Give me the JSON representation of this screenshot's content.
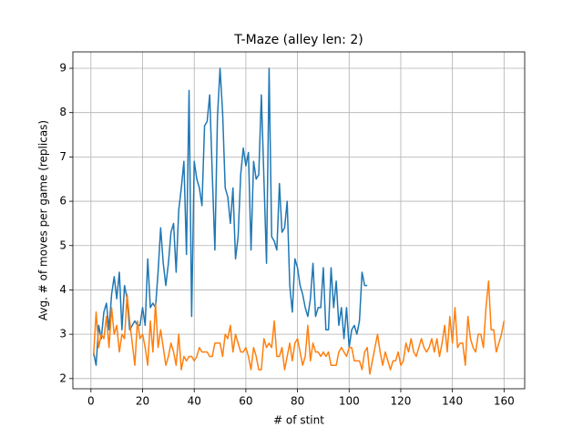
{
  "chart_data": {
    "type": "line",
    "title": "T-Maze (alley len: 2)",
    "x_label": "# of stint",
    "y_label": "Avg. # of moves per game (replicas)",
    "x": [
      1,
      2,
      3,
      4,
      5,
      6,
      7,
      8,
      9,
      10,
      11,
      12,
      13,
      14,
      15,
      16,
      17,
      18,
      19,
      20,
      21,
      22,
      23,
      24,
      25,
      26,
      27,
      28,
      29,
      30,
      31,
      32,
      33,
      34,
      35,
      36,
      37,
      38,
      39,
      40,
      41,
      42,
      43,
      44,
      45,
      46,
      47,
      48,
      49,
      50,
      51,
      52,
      53,
      54,
      55,
      56,
      57,
      58,
      59,
      60,
      61,
      62,
      63,
      64,
      65,
      66,
      67,
      68,
      69,
      70,
      71,
      72,
      73,
      74,
      75,
      76,
      77,
      78,
      79,
      80,
      81,
      82,
      83,
      84,
      85,
      86,
      87,
      88,
      89,
      90,
      91,
      92,
      93,
      94,
      95,
      96,
      97,
      98,
      99,
      100,
      101,
      102,
      103,
      104,
      105,
      106,
      107,
      108,
      109,
      110,
      111,
      112,
      113,
      114,
      115,
      116,
      117,
      118,
      119,
      120,
      121,
      122,
      123,
      124,
      125,
      126,
      127,
      128,
      129,
      130,
      131,
      132,
      133,
      134,
      135,
      136,
      137,
      138,
      139,
      140,
      141,
      142,
      143,
      144,
      145,
      146,
      147,
      148,
      149,
      150,
      151,
      152,
      153,
      154,
      155,
      156,
      157,
      158,
      159,
      160
    ],
    "series": [
      {
        "color": "#1f77b4",
        "values": [
          2.6,
          2.3,
          3.2,
          2.9,
          3.5,
          3.7,
          3.1,
          3.9,
          4.3,
          3.8,
          4.4,
          3.1,
          4.1,
          3.8,
          3.1,
          3.2,
          3.3,
          3.2,
          3.2,
          3.6,
          3.2,
          4.7,
          3.6,
          3.7,
          3.6,
          4.4,
          5.4,
          4.6,
          4.1,
          4.6,
          5.3,
          5.5,
          4.4,
          5.8,
          6.3,
          6.9,
          4.8,
          8.5,
          3.4,
          6.9,
          6.5,
          6.3,
          5.9,
          7.7,
          7.8,
          8.4,
          6.6,
          4.9,
          7.9,
          9.0,
          8.0,
          6.3,
          6.1,
          5.5,
          6.3,
          4.7,
          5.2,
          6.6,
          7.2,
          6.8,
          7.1,
          4.9,
          6.9,
          6.5,
          6.6,
          8.4,
          6.5,
          4.6,
          9.0,
          5.2,
          5.1,
          4.9,
          6.4,
          5.3,
          5.4,
          6.0,
          4.1,
          3.5,
          4.7,
          4.5,
          4.1,
          3.9,
          3.6,
          3.4,
          3.8,
          4.6,
          3.4,
          3.6,
          3.6,
          4.5,
          3.1,
          3.1,
          4.5,
          3.6,
          4.2,
          3.2,
          3.6,
          2.9,
          3.6,
          2.7,
          3.1,
          3.2,
          3.0,
          3.3,
          4.4,
          4.1,
          4.1,
          null,
          null,
          null,
          null,
          null,
          null,
          null,
          null,
          null,
          null,
          null,
          null,
          null,
          null,
          null,
          null,
          null,
          null,
          null,
          null,
          null,
          null,
          null,
          null,
          null,
          null,
          null,
          null,
          null,
          null,
          null,
          null,
          null,
          null,
          null,
          null,
          null,
          null,
          null,
          null,
          null,
          null,
          null,
          null,
          null,
          null,
          null,
          null,
          null,
          null,
          null,
          null,
          null
        ]
      },
      {
        "color": "#ff7f0e",
        "values": [
          2.5,
          3.5,
          2.7,
          3.0,
          2.9,
          3.4,
          2.7,
          3.6,
          3.0,
          3.2,
          2.6,
          3.0,
          2.9,
          3.9,
          3.3,
          2.8,
          2.3,
          3.3,
          2.9,
          3.0,
          2.7,
          2.3,
          3.3,
          2.6,
          3.7,
          2.7,
          3.1,
          2.7,
          2.3,
          2.5,
          2.8,
          2.6,
          2.3,
          3.0,
          2.2,
          2.5,
          2.4,
          2.5,
          2.5,
          2.4,
          2.5,
          2.7,
          2.6,
          2.6,
          2.6,
          2.5,
          2.5,
          2.8,
          2.8,
          2.8,
          2.5,
          3.0,
          2.9,
          3.2,
          2.6,
          3.0,
          2.8,
          2.6,
          2.6,
          2.7,
          2.5,
          2.2,
          2.7,
          2.5,
          2.2,
          2.2,
          2.9,
          2.7,
          2.8,
          2.7,
          3.3,
          2.5,
          2.5,
          2.7,
          2.2,
          2.5,
          2.8,
          2.4,
          2.8,
          2.9,
          2.6,
          2.3,
          2.5,
          3.2,
          2.4,
          2.8,
          2.6,
          2.6,
          2.5,
          2.6,
          2.5,
          2.6,
          2.3,
          2.3,
          2.3,
          2.6,
          2.7,
          2.6,
          2.5,
          2.7,
          2.7,
          2.4,
          2.4,
          2.4,
          2.2,
          2.6,
          2.7,
          2.1,
          2.4,
          2.7,
          3.0,
          2.6,
          2.3,
          2.6,
          2.4,
          2.2,
          2.4,
          2.4,
          2.6,
          2.3,
          2.4,
          2.8,
          2.6,
          2.9,
          2.6,
          2.5,
          2.7,
          2.9,
          2.7,
          2.6,
          2.7,
          2.9,
          2.6,
          2.9,
          2.5,
          2.8,
          3.2,
          2.6,
          3.4,
          2.8,
          3.6,
          2.7,
          2.8,
          2.8,
          2.3,
          3.4,
          2.9,
          2.7,
          2.6,
          3.0,
          3.0,
          2.7,
          3.6,
          4.2,
          3.1,
          3.1,
          2.6,
          2.8,
          3.0,
          3.3
        ]
      }
    ],
    "xlim": [
      -7,
      168
    ],
    "ylim": [
      1.77,
      9.37
    ],
    "xticks": [
      0,
      20,
      40,
      60,
      80,
      100,
      120,
      140,
      160
    ],
    "yticks": [
      2,
      3,
      4,
      5,
      6,
      7,
      8,
      9
    ],
    "grid": true
  }
}
